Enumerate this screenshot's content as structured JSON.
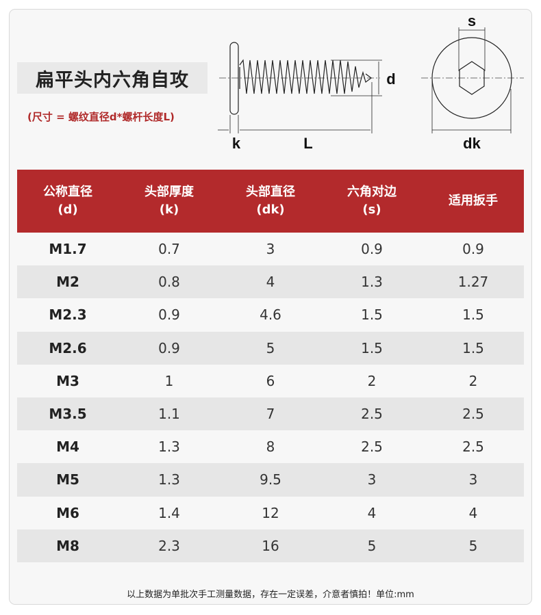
{
  "title": "扁平头内六角自攻",
  "subtitle": "(尺寸 = 螺纹直径d*螺杆长度L)",
  "diagram_labels": {
    "d": "d",
    "k": "k",
    "L": "L",
    "s": "s",
    "dk": "dk"
  },
  "table": {
    "headers": [
      {
        "line1": "公称直径",
        "line2": "(d)"
      },
      {
        "line1": "头部厚度",
        "line2": "(k)"
      },
      {
        "line1": "头部直径",
        "line2": "(dk)"
      },
      {
        "line1": "六角对边",
        "line2": "(s)"
      },
      {
        "line1": "适用扳手",
        "line2": ""
      }
    ],
    "rows": [
      [
        "M1.7",
        "0.7",
        "3",
        "0.9",
        "0.9"
      ],
      [
        "M2",
        "0.8",
        "4",
        "1.3",
        "1.27"
      ],
      [
        "M2.3",
        "0.9",
        "4.6",
        "1.5",
        "1.5"
      ],
      [
        "M2.6",
        "0.9",
        "5",
        "1.5",
        "1.5"
      ],
      [
        "M3",
        "1",
        "6",
        "2",
        "2"
      ],
      [
        "M3.5",
        "1.1",
        "7",
        "2.5",
        "2.5"
      ],
      [
        "M4",
        "1.3",
        "8",
        "2.5",
        "2.5"
      ],
      [
        "M5",
        "1.3",
        "9.5",
        "3",
        "3"
      ],
      [
        "M6",
        "1.4",
        "12",
        "4",
        "4"
      ],
      [
        "M8",
        "2.3",
        "16",
        "5",
        "5"
      ]
    ]
  },
  "footnote": "以上数据为单批次手工测量数据，存在一定误差，介意者慎拍！单位:mm",
  "colors": {
    "header_bg": "#b32a2c",
    "subtitle": "#b02a2a",
    "stripe": "#e6e6e6"
  }
}
